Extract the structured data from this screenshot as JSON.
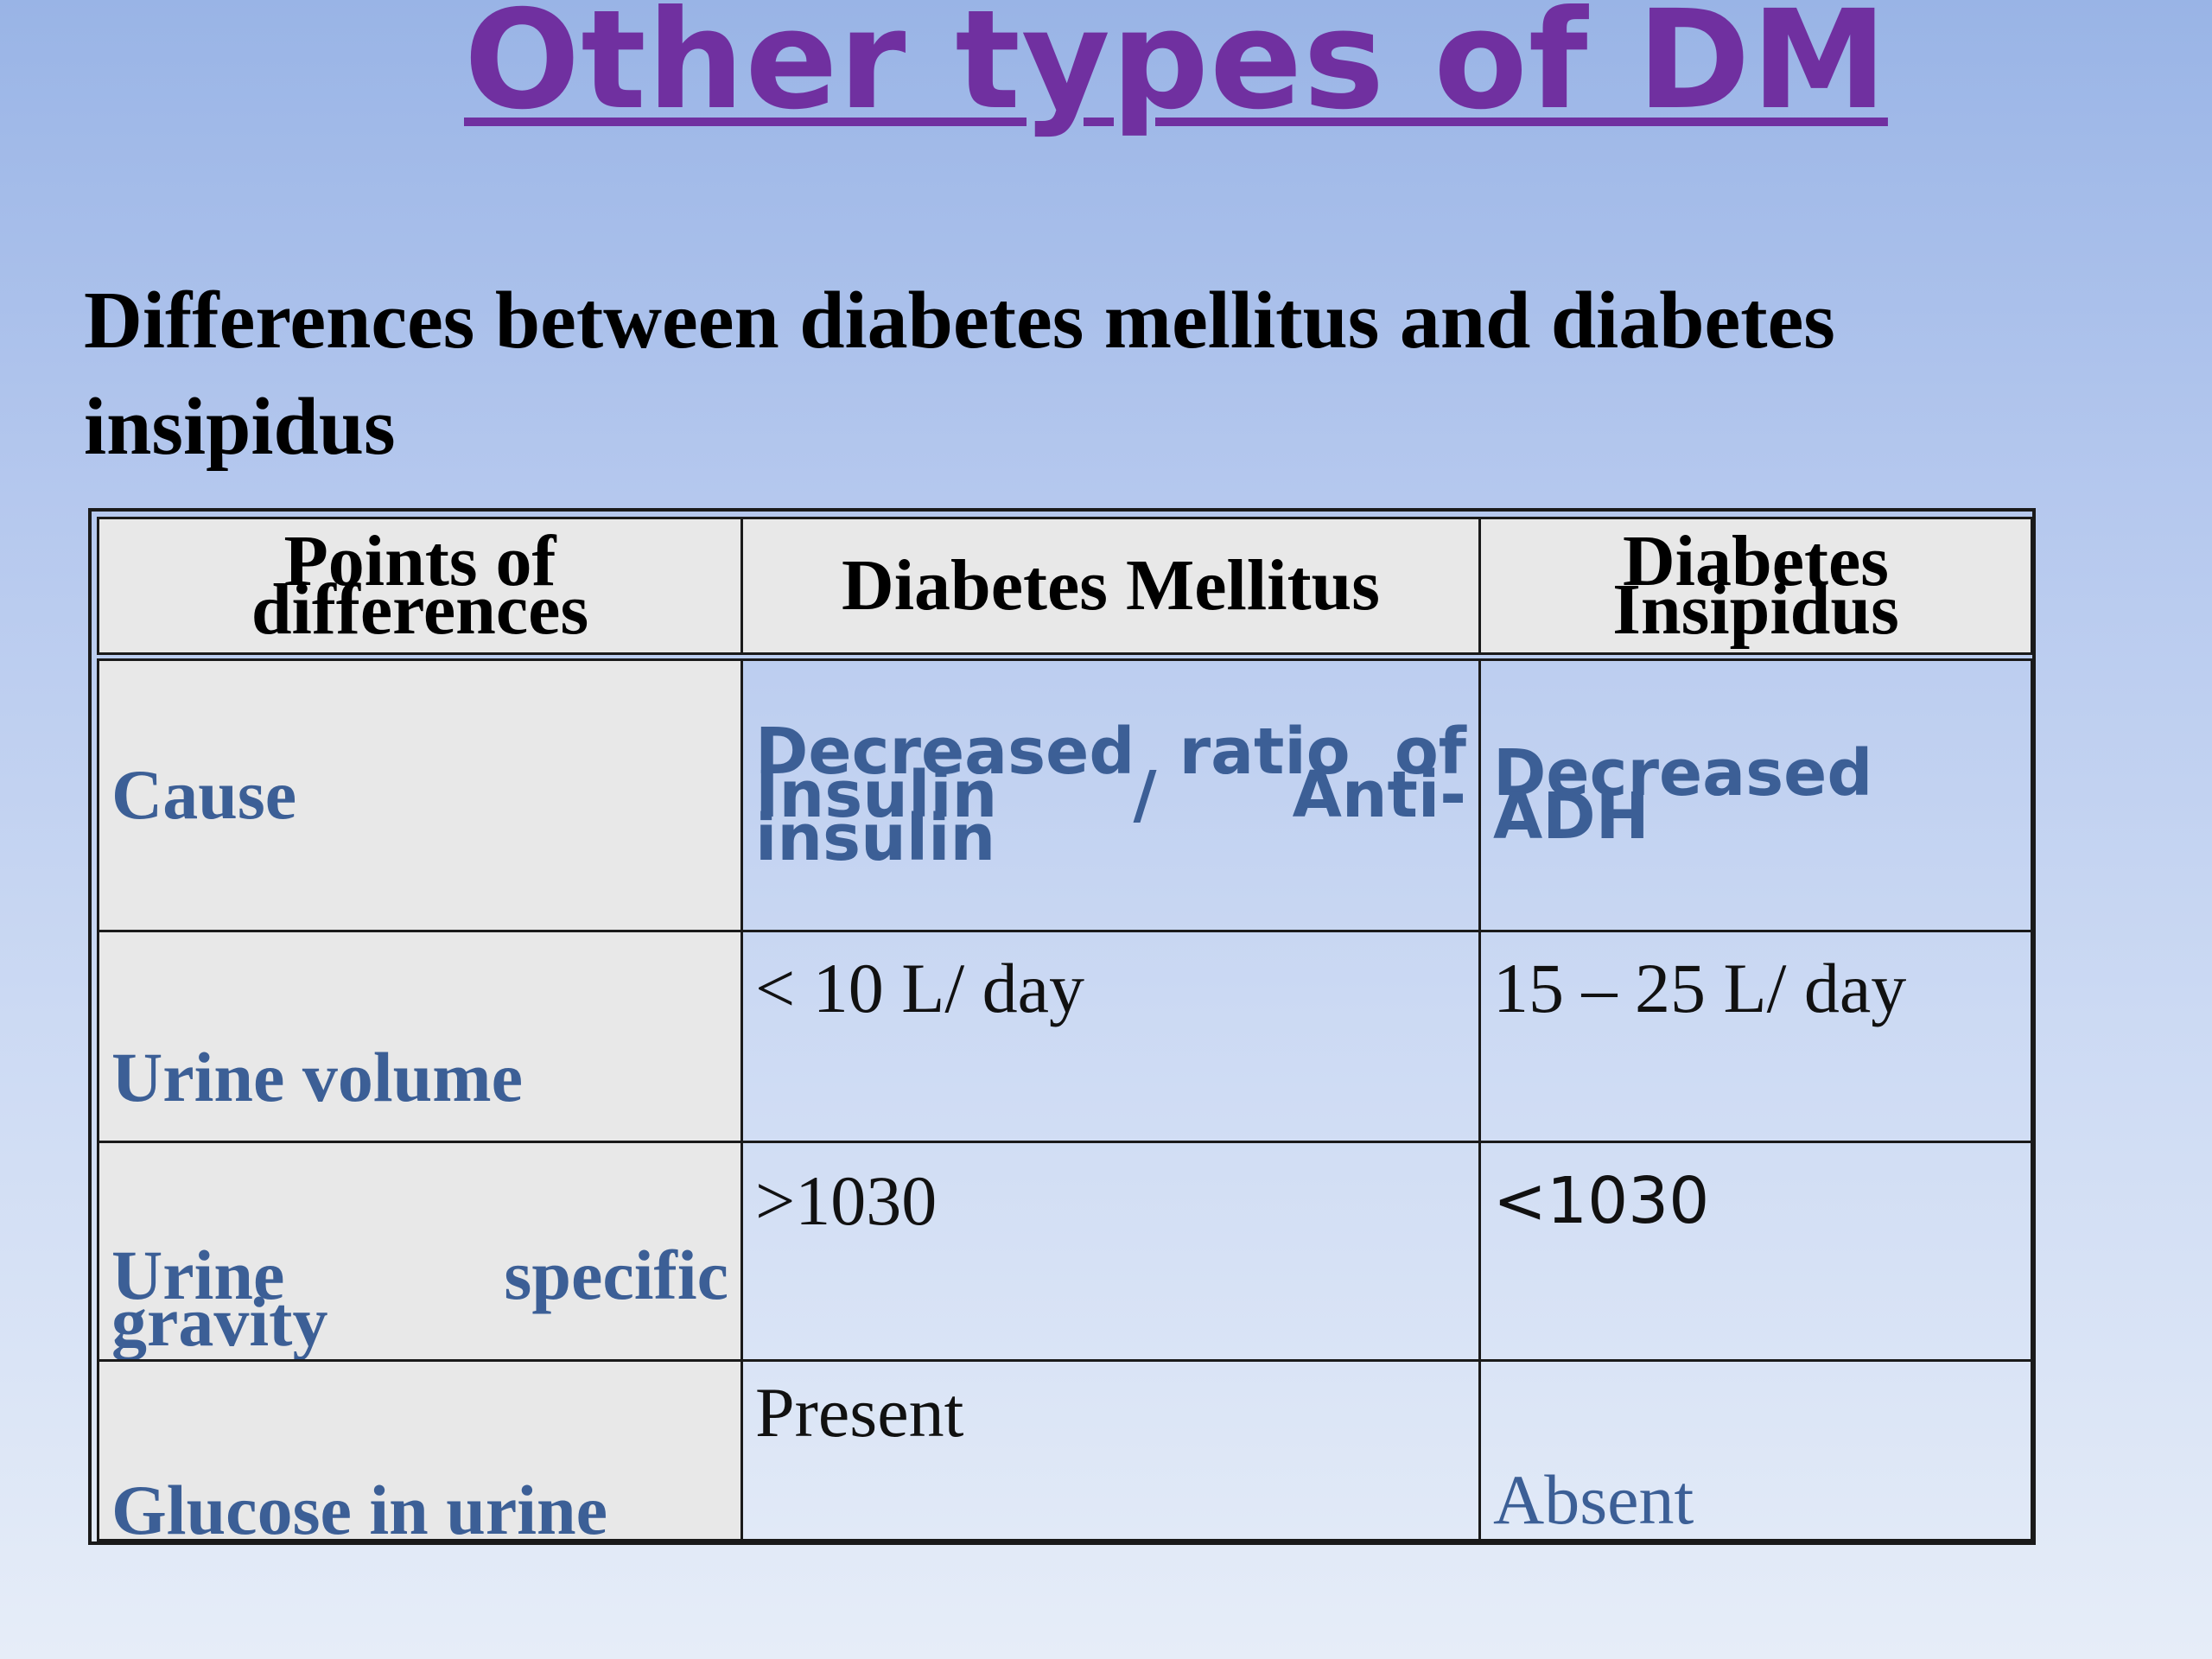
{
  "title": "Other types of DM",
  "subtitle": "Differences between diabetes mellitus and diabetes insipidus",
  "table": {
    "headers": [
      "Points of differences",
      "Diabetes Mellitus",
      "Diabetes Insipidus"
    ],
    "rows": [
      {
        "point": "Cause",
        "dm": "Decreased ratio of Insulin / Anti-insulin",
        "di": "Decreased ADH"
      },
      {
        "point": "Urine volume",
        "dm": "< 10 L/ day",
        "di": "15 – 25 L/ day"
      },
      {
        "point": "Urine specific gravity",
        "dm": ">1030",
        "di": "<1030"
      },
      {
        "point": "Glucose in urine",
        "dm": "Present",
        "di": "Absent"
      }
    ]
  },
  "colors": {
    "title": "#7030a0",
    "label_blue": "#3c5f96",
    "header_bg": "#e8e8e8"
  }
}
